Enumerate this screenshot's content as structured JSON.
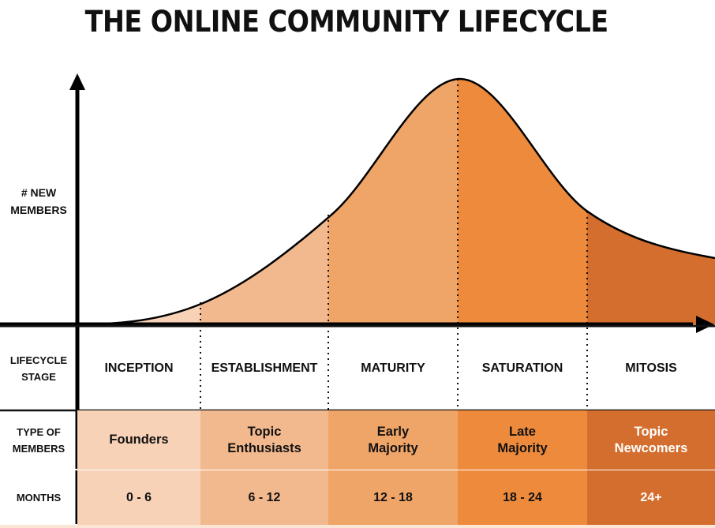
{
  "title": "THE ONLINE COMMUNITY LIFECYCLE",
  "y_axis_label": [
    "# NEW",
    "MEMBERS"
  ],
  "row_labels": {
    "stage": [
      "LIFECYCLE",
      "STAGE"
    ],
    "members": [
      "TYPE OF",
      "MEMBERS"
    ],
    "months": "MONTHS"
  },
  "stages": [
    {
      "name": "INCEPTION",
      "members": [
        "Founders"
      ],
      "months": "0 - 6",
      "color": "#f8d2b6"
    },
    {
      "name": "ESTABLISHMENT",
      "members": [
        "Topic",
        "Enthusiasts"
      ],
      "months": "6 - 12",
      "color": "#f3b98e"
    },
    {
      "name": "MATURITY",
      "members": [
        "Early",
        "Majority"
      ],
      "months": "12 - 18",
      "color": "#efa468"
    },
    {
      "name": "SATURATION",
      "members": [
        "Late",
        "Majority"
      ],
      "months": "18 - 24",
      "color": "#ee8a3c"
    },
    {
      "name": "MITOSIS",
      "members": [
        "Topic",
        "Newcomers"
      ],
      "months": "24+",
      "color": "#d46e2e"
    }
  ],
  "chart_data": {
    "type": "area",
    "title": "THE ONLINE COMMUNITY LIFECYCLE",
    "xlabel": "",
    "ylabel": "# NEW MEMBERS",
    "categories": [
      "0 - 6",
      "6 - 12",
      "12 - 18",
      "18 - 24",
      "24+"
    ],
    "x": [
      0,
      6,
      12,
      18,
      24,
      30
    ],
    "y": [
      0,
      0.09,
      0.45,
      1.0,
      0.46,
      0.27
    ],
    "ylim": [
      0,
      1
    ],
    "grid": false,
    "legend": "none"
  }
}
